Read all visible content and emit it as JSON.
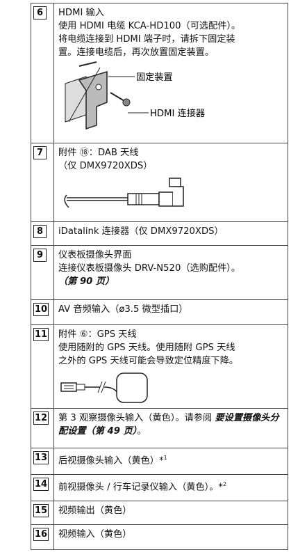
{
  "rows": [
    {
      "number": "6",
      "lines": [
        "HDMI 输入",
        "使用 HDMI 电缆 KCA-HD100（可选配件）。",
        "将电缆连接到 HDMI 端子时，请拆下固定装",
        "置。连接电缆后，再次放置固定装置。"
      ],
      "callouts": [
        "固定装置",
        "HDMI 连接器"
      ]
    },
    {
      "number": "7",
      "lines": [
        "附件 ⑱：DAB 天线",
        "（仅 DMX9720XDS）"
      ]
    },
    {
      "number": "8",
      "lines": [
        "iDatalink 连接器（仅 DMX9720XDS）"
      ]
    },
    {
      "number": "9",
      "lines": [
        "仪表板摄像头界面",
        "连接仪表板摄像头 DRV-N520（选购配件）。"
      ],
      "link": "（第 90 页）"
    },
    {
      "number": "10",
      "lines": [
        "AV 音频输入（ø3.5 微型插口）"
      ]
    },
    {
      "number": "11",
      "lines": [
        "附件 ⑥：GPS 天线",
        "使用随附的 GPS 天线。使用随附 GPS 天线",
        "之外的 GPS 天线可能会导致定位精度下降。"
      ]
    },
    {
      "number": "12",
      "text": "第 3 观察摄像头输入（黄色）。请参阅 ",
      "bold": "要设置摄像头分配设置（第 49 页）",
      "tail": "。"
    },
    {
      "number": "13",
      "text": "后视摄像头输入（黄色）*",
      "sup": "1"
    },
    {
      "number": "14",
      "text": "前视摄像头 / 行车记录仪输入（黄色）。*",
      "sup": "2"
    },
    {
      "number": "15",
      "text": "视频输出（黄色）"
    },
    {
      "number": "16",
      "text": "视频输入（黄色）"
    }
  ]
}
